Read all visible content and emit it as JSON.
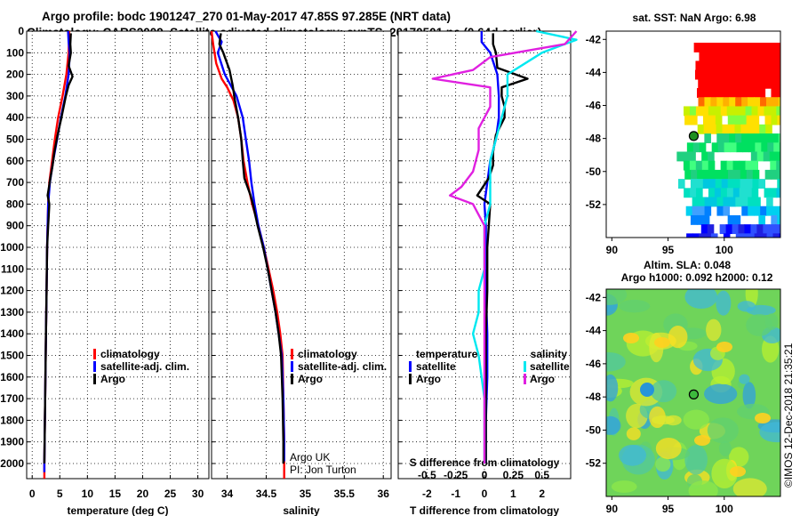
{
  "title": {
    "line1": "Argo profile: bodc 1901247_270 01-May-2017 47.85S 97.285E (NRT data)",
    "line2": "Climatology: CARS2009. Satellite-adjusted climatology: synTS_20170501.nc (0.64d earlier)"
  },
  "chart_data": [
    {
      "id": "temperature",
      "type": "line",
      "xlabel": "temperature (deg C)",
      "ylabel": "",
      "xlim": [
        -1,
        32
      ],
      "ylim": [
        2070,
        0
      ],
      "xticks": [
        0,
        5,
        10,
        15,
        20,
        25,
        30
      ],
      "yticks": [
        0,
        100,
        200,
        300,
        400,
        500,
        600,
        700,
        800,
        900,
        1000,
        1100,
        1200,
        1300,
        1400,
        1500,
        1600,
        1700,
        1800,
        1900,
        2000
      ],
      "legend": [
        "climatology",
        "satellite-adj. clim.",
        "Argo"
      ],
      "series": [
        {
          "name": "climatology",
          "color": "#ff0000",
          "points": [
            [
              6.7,
              0
            ],
            [
              6.6,
              100
            ],
            [
              6.2,
              200
            ],
            [
              5.5,
              300
            ],
            [
              4.7,
              400
            ],
            [
              4.1,
              500
            ],
            [
              3.6,
              600
            ],
            [
              3.1,
              700
            ],
            [
              2.9,
              800
            ],
            [
              2.8,
              900
            ],
            [
              2.7,
              1000
            ],
            [
              2.6,
              1200
            ],
            [
              2.5,
              1400
            ],
            [
              2.4,
              1600
            ],
            [
              2.3,
              1800
            ],
            [
              2.2,
              2000
            ],
            [
              2.2,
              2070
            ]
          ]
        },
        {
          "name": "satellite-adj. clim.",
          "color": "#0000ff",
          "points": [
            [
              6.5,
              0
            ],
            [
              6.6,
              50
            ],
            [
              6.8,
              100
            ],
            [
              6.6,
              200
            ],
            [
              6.0,
              300
            ],
            [
              5.2,
              400
            ],
            [
              4.5,
              500
            ],
            [
              3.8,
              600
            ],
            [
              3.2,
              700
            ],
            [
              2.9,
              800
            ],
            [
              2.8,
              900
            ],
            [
              2.7,
              1000
            ],
            [
              2.6,
              1200
            ],
            [
              2.5,
              1400
            ],
            [
              2.4,
              1600
            ],
            [
              2.3,
              1800
            ],
            [
              2.2,
              2000
            ],
            [
              2.2,
              2040
            ]
          ]
        },
        {
          "name": "Argo",
          "color": "#000000",
          "points": [
            [
              7.0,
              10
            ],
            [
              6.9,
              60
            ],
            [
              7.0,
              100
            ],
            [
              6.6,
              160
            ],
            [
              7.3,
              210
            ],
            [
              6.6,
              250
            ],
            [
              6.1,
              300
            ],
            [
              5.3,
              400
            ],
            [
              4.6,
              480
            ],
            [
              4.0,
              560
            ],
            [
              3.7,
              620
            ],
            [
              3.3,
              680
            ],
            [
              2.8,
              760
            ],
            [
              3.1,
              800
            ],
            [
              2.9,
              900
            ],
            [
              2.7,
              1000
            ],
            [
              2.6,
              1200
            ],
            [
              2.5,
              1400
            ],
            [
              2.4,
              1600
            ],
            [
              2.3,
              1800
            ],
            [
              2.2,
              2000
            ]
          ]
        }
      ]
    },
    {
      "id": "salinity",
      "type": "line",
      "xlabel": "salinity",
      "xlim": [
        33.8,
        36.1
      ],
      "ylim": [
        2070,
        0
      ],
      "xticks": [
        34,
        34.5,
        35,
        35.5,
        36
      ],
      "legend": [
        "climatology",
        "satellite-adj. clim.",
        "Argo"
      ],
      "series": [
        {
          "name": "climatology",
          "color": "#ff0000",
          "points": [
            [
              33.8,
              0
            ],
            [
              33.82,
              60
            ],
            [
              33.86,
              150
            ],
            [
              33.93,
              220
            ],
            [
              34.0,
              260
            ],
            [
              34.08,
              320
            ],
            [
              34.14,
              400
            ],
            [
              34.18,
              500
            ],
            [
              34.21,
              600
            ],
            [
              34.26,
              700
            ],
            [
              34.32,
              800
            ],
            [
              34.4,
              900
            ],
            [
              34.47,
              1000
            ],
            [
              34.53,
              1100
            ],
            [
              34.59,
              1200
            ],
            [
              34.64,
              1300
            ],
            [
              34.68,
              1400
            ],
            [
              34.71,
              1500
            ],
            [
              34.72,
              1700
            ],
            [
              34.73,
              1900
            ],
            [
              34.73,
              2070
            ]
          ]
        },
        {
          "name": "satellite-adj. clim.",
          "color": "#0000ff",
          "points": [
            [
              33.85,
              0
            ],
            [
              33.93,
              50
            ],
            [
              33.88,
              100
            ],
            [
              33.97,
              200
            ],
            [
              34.12,
              300
            ],
            [
              34.2,
              400
            ],
            [
              34.24,
              500
            ],
            [
              34.28,
              600
            ],
            [
              34.31,
              700
            ],
            [
              34.35,
              800
            ],
            [
              34.4,
              900
            ],
            [
              34.47,
              1000
            ],
            [
              34.52,
              1100
            ],
            [
              34.57,
              1200
            ],
            [
              34.62,
              1300
            ],
            [
              34.66,
              1400
            ],
            [
              34.7,
              1500
            ],
            [
              34.72,
              1700
            ],
            [
              34.73,
              1900
            ],
            [
              34.73,
              1990
            ]
          ]
        },
        {
          "name": "Argo",
          "color": "#000000",
          "points": [
            [
              33.92,
              10
            ],
            [
              33.9,
              60
            ],
            [
              33.95,
              100
            ],
            [
              34.03,
              180
            ],
            [
              34.07,
              250
            ],
            [
              34.1,
              320
            ],
            [
              34.14,
              400
            ],
            [
              34.18,
              500
            ],
            [
              34.2,
              600
            ],
            [
              34.22,
              680
            ],
            [
              34.3,
              760
            ],
            [
              34.33,
              800
            ],
            [
              34.39,
              900
            ],
            [
              34.46,
              1000
            ],
            [
              34.52,
              1100
            ],
            [
              34.57,
              1200
            ],
            [
              34.62,
              1300
            ],
            [
              34.66,
              1400
            ],
            [
              34.69,
              1500
            ],
            [
              34.71,
              1700
            ],
            [
              34.72,
              1900
            ],
            [
              34.72,
              2000
            ]
          ]
        }
      ]
    },
    {
      "id": "difference",
      "type": "line",
      "xlabel": "T difference from climatology",
      "secondary_xlabel": "S difference from climatology",
      "xlim": [
        -3,
        3
      ],
      "ylim": [
        2070,
        0
      ],
      "xticks": [
        -2,
        -1,
        0,
        1,
        2
      ],
      "secondary_xticks": [
        -0.5,
        -0.25,
        0,
        0.25,
        0.5
      ],
      "secondary_xtick_labels": [
        "-0.5",
        "-0.25",
        "0",
        "0.25",
        "0.5"
      ],
      "legend_temperature": [
        "temperature",
        "satellite",
        "Argo"
      ],
      "legend_salinity": [
        "salinity",
        "satellite",
        "Argo"
      ],
      "series": [
        {
          "name": "temperature satellite",
          "color": "#0000ff",
          "points": [
            [
              -0.1,
              0
            ],
            [
              -0.1,
              50
            ],
            [
              0.2,
              100
            ],
            [
              0.45,
              200
            ],
            [
              0.5,
              300
            ],
            [
              0.5,
              400
            ],
            [
              0.4,
              500
            ],
            [
              0.2,
              600
            ],
            [
              0.1,
              700
            ],
            [
              0.0,
              800
            ],
            [
              0.05,
              900
            ],
            [
              0.05,
              1000
            ],
            [
              0.05,
              1200
            ],
            [
              0.1,
              1400
            ],
            [
              0.1,
              1600
            ],
            [
              0.05,
              1800
            ],
            [
              0.05,
              2000
            ]
          ]
        },
        {
          "name": "temperature Argo",
          "color": "#000000",
          "points": [
            [
              0.3,
              10
            ],
            [
              0.3,
              60
            ],
            [
              0.4,
              100
            ],
            [
              0.45,
              170
            ],
            [
              1.5,
              220
            ],
            [
              0.6,
              260
            ],
            [
              0.6,
              300
            ],
            [
              0.7,
              350
            ],
            [
              0.7,
              400
            ],
            [
              0.4,
              480
            ],
            [
              0.3,
              560
            ],
            [
              0.3,
              620
            ],
            [
              0.15,
              680
            ],
            [
              -0.25,
              760
            ],
            [
              0.2,
              800
            ],
            [
              0.15,
              900
            ],
            [
              0.1,
              1000
            ],
            [
              0.1,
              1200
            ],
            [
              0.05,
              1400
            ],
            [
              0.05,
              1600
            ],
            [
              0.05,
              1800
            ],
            [
              0.05,
              2000
            ]
          ]
        },
        {
          "name": "salinity satellite",
          "color": "#00e8f0",
          "points": [
            [
              0.45,
              0
            ],
            [
              0.8,
              40
            ],
            [
              0.5,
              100
            ],
            [
              0.2,
              200
            ],
            [
              0.2,
              300
            ],
            [
              0.15,
              400
            ],
            [
              0.1,
              500
            ],
            [
              0.05,
              600
            ],
            [
              0.05,
              700
            ],
            [
              0.05,
              800
            ],
            [
              0.0,
              900
            ],
            [
              0.0,
              1000
            ],
            [
              0.0,
              1100
            ],
            [
              -0.05,
              1200
            ],
            [
              -0.05,
              1300
            ],
            [
              -0.1,
              1400
            ],
            [
              -0.05,
              1500
            ],
            [
              0.0,
              1700
            ],
            [
              0.0,
              1900
            ],
            [
              0.0,
              2000
            ]
          ]
        },
        {
          "name": "salinity Argo",
          "color": "#e020e0",
          "points": [
            [
              0.8,
              0
            ],
            [
              0.7,
              60
            ],
            [
              0.05,
              120
            ],
            [
              -0.1,
              180
            ],
            [
              -0.45,
              220
            ],
            [
              0.05,
              260
            ],
            [
              0.05,
              350
            ],
            [
              -0.05,
              450
            ],
            [
              -0.05,
              550
            ],
            [
              -0.1,
              650
            ],
            [
              -0.2,
              720
            ],
            [
              -0.3,
              760
            ],
            [
              -0.1,
              800
            ],
            [
              0.0,
              900
            ],
            [
              0.0,
              1100
            ],
            [
              0.0,
              1300
            ],
            [
              0.0,
              1500
            ],
            [
              0.0,
              1700
            ],
            [
              0.0,
              1900
            ],
            [
              0.0,
              2000
            ]
          ]
        }
      ]
    }
  ],
  "annotations": {
    "argo_uk": "Argo UK",
    "pi": "PI: Jon Turton"
  },
  "map_sst": {
    "title": "sat. SST: NaN Argo: 6.98",
    "xticks": [
      90,
      95,
      100
    ],
    "yticks": [
      -42,
      -44,
      -46,
      -48,
      -50,
      -52
    ],
    "xlim": [
      89.5,
      105
    ],
    "ylim": [
      -54,
      -41.5
    ],
    "profile_location": {
      "lon": 97.285,
      "lat": -47.85
    }
  },
  "map_sla": {
    "title_line1": "Altim. SLA: 0.048",
    "title_line2": "Argo h1000: 0.092 h2000: 0.12",
    "xticks": [
      90,
      95,
      100
    ],
    "yticks": [
      -42,
      -44,
      -46,
      -48,
      -50,
      -52
    ],
    "xlim": [
      89.5,
      105
    ],
    "ylim": [
      -54,
      -41.5
    ],
    "profile_location": {
      "lon": 97.285,
      "lat": -47.85
    }
  },
  "watermark": "©IMOS 12-Dec-2018 21:35:21",
  "colors": {
    "climatology": "#ff0000",
    "satellite_adj": "#0000ff",
    "argo": "#000000",
    "salinity_satellite": "#00e8f0",
    "salinity_argo": "#e020e0"
  }
}
